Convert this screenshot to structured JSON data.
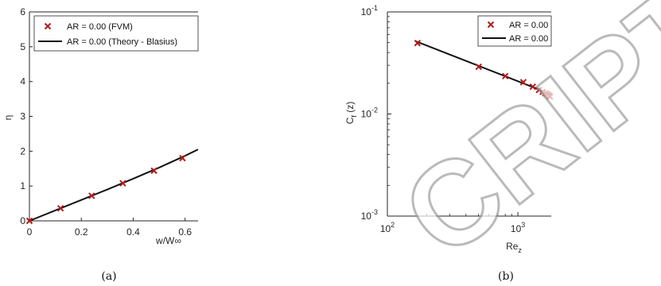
{
  "chart_data": [
    {
      "type": "line",
      "panel_caption": "(a)",
      "xlabel": "w/W∞",
      "ylabel": "η",
      "xlim": [
        0,
        0.65
      ],
      "ylim": [
        0,
        6
      ],
      "x_ticks": [
        "0",
        "0.2",
        "0.4",
        "0.6"
      ],
      "y_ticks": [
        "0",
        "1",
        "2",
        "3",
        "4",
        "5",
        "6"
      ],
      "legend": "top-right",
      "series": [
        {
          "name": "AR = 0.00 (FVM)",
          "style": "markers",
          "marker": "x",
          "color": "#b01c1c",
          "x": [
            0.0,
            0.12,
            0.24,
            0.36,
            0.48,
            0.59
          ],
          "y": [
            0.0,
            0.36,
            0.72,
            1.08,
            1.44,
            1.8
          ]
        },
        {
          "name": "AR = 0.00 (Theory - Blasius)",
          "style": "line",
          "color": "#111111",
          "x": [
            0.0,
            0.1,
            0.2,
            0.3,
            0.4,
            0.5,
            0.6,
            0.65
          ],
          "y": [
            0.0,
            0.3,
            0.6,
            0.9,
            1.21,
            1.53,
            1.87,
            2.05
          ]
        }
      ]
    },
    {
      "type": "line",
      "panel_caption": "(b)",
      "xlabel": "Re",
      "xlabel_sub": "z",
      "ylabel": "C",
      "ylabel_sub": "f",
      "ylabel_suffix": " (z)",
      "xscale": "log",
      "yscale": "log",
      "xlim": [
        100,
        1800
      ],
      "ylim": [
        0.001,
        0.1
      ],
      "x_ticks": [
        {
          "base": "10",
          "exp": "2"
        },
        {
          "base": "10",
          "exp": "3"
        }
      ],
      "y_ticks": [
        {
          "base": "10",
          "exp": "-3"
        },
        {
          "base": "10",
          "exp": "-2"
        },
        {
          "base": "10",
          "exp": "-1"
        }
      ],
      "legend": "top-right",
      "series": [
        {
          "name": "AR = 0.00",
          "style": "markers",
          "marker": "x",
          "color": "#b01c1c",
          "x": [
            170,
            500,
            800,
            1100,
            1300,
            1450,
            1550,
            1620,
            1680,
            1730,
            1760
          ],
          "y": [
            0.0495,
            0.029,
            0.0235,
            0.0205,
            0.0185,
            0.0172,
            0.0165,
            0.016,
            0.0157,
            0.0152,
            0.0148
          ]
        },
        {
          "name": "AR = 0.00",
          "style": "line",
          "color": "#111111",
          "x": [
            165,
            1800
          ],
          "y": [
            0.0516,
            0.0156
          ]
        }
      ]
    }
  ],
  "watermark": "CRIPT"
}
